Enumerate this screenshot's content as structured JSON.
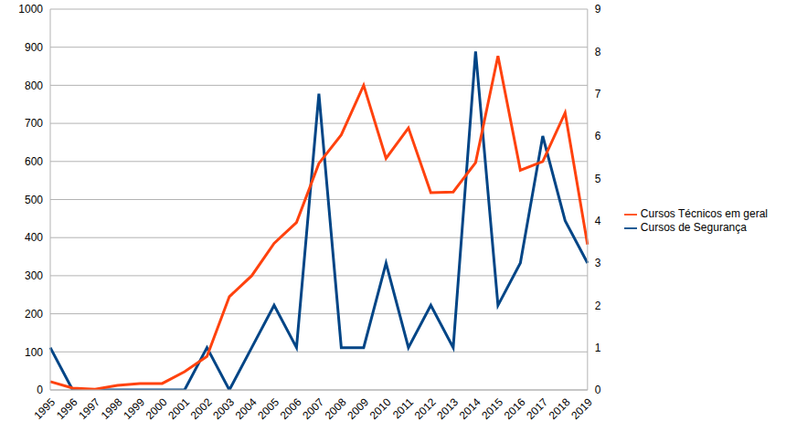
{
  "chart_data": {
    "type": "line",
    "categories": [
      "1995",
      "1996",
      "1997",
      "1998",
      "1999",
      "2000",
      "2001",
      "2002",
      "2003",
      "2004",
      "2005",
      "2006",
      "2007",
      "2008",
      "2009",
      "2010",
      "2011",
      "2012",
      "2013",
      "2014",
      "2015",
      "2016",
      "2017",
      "2018",
      "2019"
    ],
    "series": [
      {
        "name": "Cursos de Segurança",
        "color": "#004586",
        "axis": "y2",
        "values": [
          1,
          0,
          0,
          0,
          0,
          0,
          0,
          1,
          0,
          1,
          2,
          1,
          7,
          1,
          1,
          3,
          1,
          2,
          1,
          8,
          2,
          3,
          6,
          4,
          3
        ]
      },
      {
        "name": "Cursos Técnicos em geral",
        "color": "#ff420e",
        "values": [
          22,
          5,
          2,
          12,
          17,
          17,
          48,
          88,
          245,
          300,
          385,
          440,
          595,
          670,
          800,
          608,
          688,
          518,
          520,
          597,
          877,
          577,
          600,
          728,
          382
        ]
      }
    ],
    "ylim": [
      0,
      1000
    ],
    "yticks": [
      0,
      100,
      200,
      300,
      400,
      500,
      600,
      700,
      800,
      900,
      1000
    ],
    "y2lim": [
      0,
      9
    ],
    "y2ticks": [
      0,
      1,
      2,
      3,
      4,
      5,
      6,
      7,
      8,
      9
    ],
    "grid": true,
    "legend": "right"
  }
}
